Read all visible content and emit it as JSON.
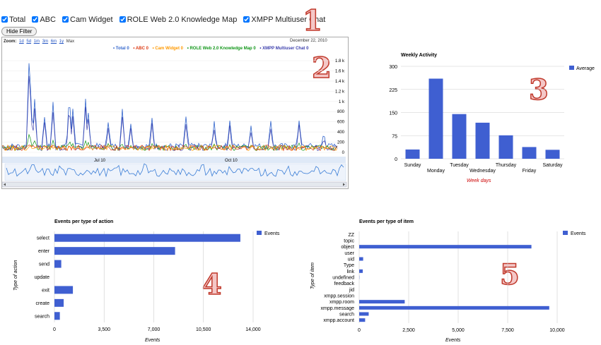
{
  "filters": {
    "items": [
      {
        "label": "Total",
        "checked": true
      },
      {
        "label": "ABC",
        "checked": true
      },
      {
        "label": "Cam Widget",
        "checked": true
      },
      {
        "label": "ROLE Web 2.0 Knowledge Map",
        "checked": true
      },
      {
        "label": "XMPP Multiuser Chat",
        "checked": true
      }
    ],
    "hide_button": "Hide Filter"
  },
  "markers": [
    "1",
    "2",
    "3",
    "4",
    "5"
  ],
  "timeline": {
    "zoom_label": "Zoom:",
    "zoom_options": [
      "1d",
      "5d",
      "1m",
      "3m",
      "6m",
      "1y",
      "Max"
    ],
    "date": "December 22, 2010",
    "legend": [
      {
        "label": "Total",
        "value": "0",
        "color": "#3366cc"
      },
      {
        "label": "ABC",
        "value": "0",
        "color": "#dc3912"
      },
      {
        "label": "Cam Widget",
        "value": "0",
        "color": "#ff9900"
      },
      {
        "label": "ROLE Web 2.0 Knowledge Map",
        "value": "0",
        "color": "#109618"
      },
      {
        "label": "XMPP Multiuser Chat",
        "value": "0",
        "color": "#3b3eac"
      }
    ],
    "x_ticks": [
      "Jul 10",
      "Oct 10"
    ],
    "y_ticks": [
      "1.8 k",
      "1.6 k",
      "1.4 k",
      "1.2 k",
      "1 k",
      "800",
      "600",
      "400",
      "200",
      "0"
    ]
  },
  "colors": {
    "bar": "#3f5fd1",
    "grid": "#cccccc",
    "axis_title": "#cc0000"
  },
  "chart_data": [
    {
      "type": "bar",
      "title": "Weekly Activity",
      "categories": [
        "Sunday",
        "Monday",
        "Tuesday",
        "Wednesday",
        "Thursday",
        "Friday",
        "Saturday"
      ],
      "series": [
        {
          "name": "Average",
          "values": [
            30,
            260,
            145,
            117,
            76,
            38,
            29
          ]
        }
      ],
      "xlabel": "Week days",
      "ylabel": "",
      "ylim": [
        0,
        300
      ],
      "yticks": [
        0,
        75,
        150,
        225,
        300
      ],
      "grid": true,
      "legend": "right"
    },
    {
      "type": "bar",
      "orientation": "horizontal",
      "title": "Events per type of action",
      "categories": [
        "select",
        "enter",
        "send",
        "update",
        "exit",
        "create",
        "search"
      ],
      "series": [
        {
          "name": "Events",
          "values": [
            13100,
            8500,
            480,
            0,
            1300,
            650,
            380
          ]
        }
      ],
      "xlabel": "Events",
      "ylabel": "Type of action",
      "xlim": [
        0,
        14000
      ],
      "xticks": [
        "0",
        "3,500",
        "7,000",
        "10,500",
        "14,000"
      ],
      "xtick_values": [
        0,
        3500,
        7000,
        10500,
        14000
      ],
      "grid": true,
      "legend": "right"
    },
    {
      "type": "bar",
      "orientation": "horizontal",
      "title": "Events per type of item",
      "categories": [
        "ZZ",
        "topic",
        "object",
        "user",
        "uid",
        "Type",
        "link",
        "undefined",
        "feedback",
        "jid",
        "xmpp.session",
        "xmpp.room",
        "xmpp.message",
        "search",
        "xmpp.account"
      ],
      "series": [
        {
          "name": "Events",
          "values": [
            0,
            0,
            8700,
            0,
            200,
            0,
            180,
            10,
            0,
            0,
            0,
            2300,
            9600,
            480,
            300
          ]
        }
      ],
      "xlabel": "Events",
      "ylabel": "Type of item",
      "xlim": [
        0,
        10000
      ],
      "xticks": [
        "0",
        "2,500",
        "5,000",
        "7,500",
        "10,000"
      ],
      "xtick_values": [
        0,
        2500,
        5000,
        7500,
        10000
      ],
      "grid": true,
      "legend": "right"
    }
  ]
}
